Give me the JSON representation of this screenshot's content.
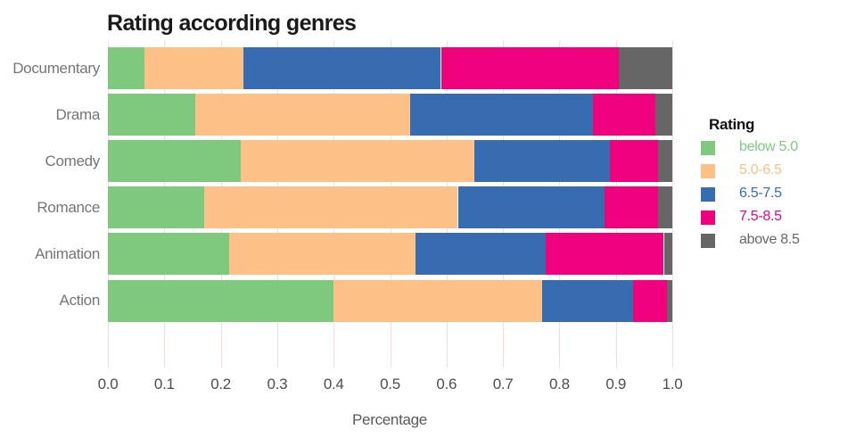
{
  "chart_data": {
    "type": "bar",
    "orientation": "horizontal",
    "stacked": true,
    "title": "Rating according genres",
    "xlabel": "Percentage",
    "ylabel": "",
    "legend_title": "Rating",
    "legend_position": "right",
    "grid": "vertical-only",
    "xlim": [
      0.0,
      1.0
    ],
    "xticks": [
      "0.0",
      "0.1",
      "0.2",
      "0.3",
      "0.4",
      "0.5",
      "0.6",
      "0.7",
      "0.8",
      "0.9",
      "1.0"
    ],
    "categories": [
      "Documentary",
      "Drama",
      "Comedy",
      "Romance",
      "Animation",
      "Action"
    ],
    "series": [
      {
        "name": "below 5.0",
        "color": "#7fc97f",
        "values": [
          0.065,
          0.155,
          0.235,
          0.17,
          0.215,
          0.4
        ]
      },
      {
        "name": "5.0-6.5",
        "color": "#fdc086",
        "values": [
          0.175,
          0.38,
          0.415,
          0.45,
          0.33,
          0.37
        ]
      },
      {
        "name": "6.5-7.5",
        "color": "#386cb0",
        "values": [
          0.35,
          0.325,
          0.24,
          0.26,
          0.23,
          0.16
        ]
      },
      {
        "name": "7.5-8.5",
        "color": "#f0027f",
        "values": [
          0.315,
          0.11,
          0.085,
          0.095,
          0.21,
          0.06
        ]
      },
      {
        "name": "above 8.5",
        "color": "#666666",
        "values": [
          0.095,
          0.03,
          0.025,
          0.025,
          0.015,
          0.01
        ]
      }
    ]
  },
  "colors": {
    "background": "#ffffff",
    "title_text": "#1a1a1a",
    "category_label_text": "#757575",
    "tick_label_text": "#4d4d4d",
    "axis_title_text": "#595959",
    "gridline": "#f6dcdc"
  }
}
